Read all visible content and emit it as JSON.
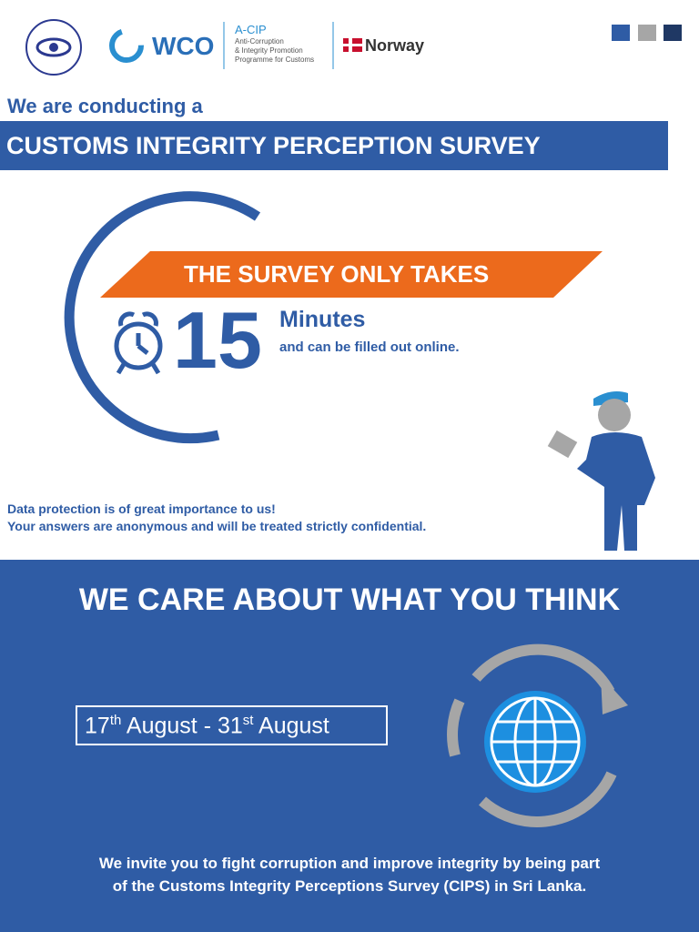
{
  "header": {
    "wco": "WCO",
    "acip": "A-CIP",
    "acip_lines": [
      "Anti-Corruption",
      "& Integrity Promotion",
      "Programme for Customs"
    ],
    "norway": "Norway"
  },
  "intro": "We are conducting a",
  "banner": "CUSTOMS INTEGRITY PERCEPTION SURVEY",
  "duration": {
    "lead": "THE SURVEY ONLY TAKES",
    "number": "15",
    "unit": "Minutes",
    "note": "and can be filled out online."
  },
  "privacy": [
    "Data protection is of great importance to us!",
    "Your answers are anonymous and will be treated strictly confidential."
  ],
  "care": "WE CARE ABOUT WHAT YOU THINK",
  "dates": {
    "start_day": "17",
    "start_suffix": "th",
    "start_month": "August",
    "separator": "-",
    "end_day": "31",
    "end_suffix": "st",
    "end_month": "August"
  },
  "invite": [
    "We invite you to fight corruption and improve integrity by being part",
    "of the Customs Integrity Perceptions Survey (CIPS) in Sri Lanka."
  ]
}
